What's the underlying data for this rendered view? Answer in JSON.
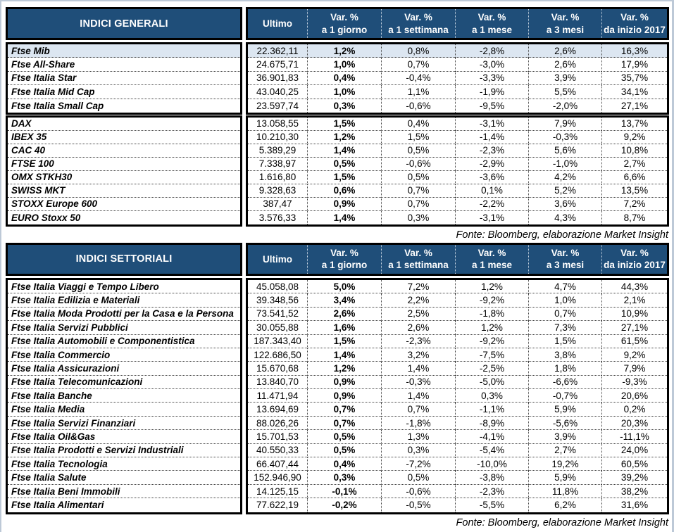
{
  "tables": [
    {
      "title": "INDICI GENERALI",
      "columns": {
        "ultimo": "Ultimo",
        "vars": [
          {
            "line1": "Var. %",
            "line2": "a 1 giorno"
          },
          {
            "line1": "Var. %",
            "line2": "a 1 settimana"
          },
          {
            "line1": "Var. %",
            "line2": "a 1 mese"
          },
          {
            "line1": "Var. %",
            "line2": "a 3 mesi"
          },
          {
            "line1": "Var. %",
            "line2": "da inizio 2017"
          }
        ]
      },
      "source": "Fonte: Bloomberg, elaborazione Market Insight",
      "groups": [
        {
          "rows": [
            {
              "name": "Ftse Mib",
              "ultimo": "22.362,11",
              "d1": "1,2%",
              "w1": "0,8%",
              "m1": "-2,8%",
              "m3": "2,6%",
              "ytd": "16,3%",
              "highlight": true
            },
            {
              "name": "Ftse All-Share",
              "ultimo": "24.675,71",
              "d1": "1,0%",
              "w1": "0,7%",
              "m1": "-3,0%",
              "m3": "2,6%",
              "ytd": "17,9%"
            },
            {
              "name": "Ftse Italia Star",
              "ultimo": "36.901,83",
              "d1": "0,4%",
              "w1": "-0,4%",
              "m1": "-3,3%",
              "m3": "3,9%",
              "ytd": "35,7%"
            },
            {
              "name": "Ftse Italia Mid Cap",
              "ultimo": "43.040,25",
              "d1": "1,0%",
              "w1": "1,1%",
              "m1": "-1,9%",
              "m3": "5,5%",
              "ytd": "34,1%"
            },
            {
              "name": "Ftse Italia Small Cap",
              "ultimo": "23.597,74",
              "d1": "0,3%",
              "w1": "-0,6%",
              "m1": "-9,5%",
              "m3": "-2,0%",
              "ytd": "27,1%"
            }
          ]
        },
        {
          "rows": [
            {
              "name": "DAX",
              "ultimo": "13.058,55",
              "d1": "1,5%",
              "w1": "0,4%",
              "m1": "-3,1%",
              "m3": "7,9%",
              "ytd": "13,7%"
            },
            {
              "name": "IBEX 35",
              "ultimo": "10.210,30",
              "d1": "1,2%",
              "w1": "1,5%",
              "m1": "-1,4%",
              "m3": "-0,3%",
              "ytd": "9,2%"
            },
            {
              "name": "CAC 40",
              "ultimo": "5.389,29",
              "d1": "1,4%",
              "w1": "0,5%",
              "m1": "-2,3%",
              "m3": "5,6%",
              "ytd": "10,8%"
            },
            {
              "name": "FTSE 100",
              "ultimo": "7.338,97",
              "d1": "0,5%",
              "w1": "-0,6%",
              "m1": "-2,9%",
              "m3": "-1,0%",
              "ytd": "2,7%"
            },
            {
              "name": "OMX STKH30",
              "ultimo": "1.616,80",
              "d1": "1,5%",
              "w1": "0,5%",
              "m1": "-3,6%",
              "m3": "4,2%",
              "ytd": "6,6%"
            },
            {
              "name": "SWISS MKT",
              "ultimo": "9.328,63",
              "d1": "0,6%",
              "w1": "0,7%",
              "m1": "0,1%",
              "m3": "5,2%",
              "ytd": "13,5%"
            },
            {
              "name": "STOXX Europe 600",
              "ultimo": "387,47",
              "d1": "0,9%",
              "w1": "0,7%",
              "m1": "-2,2%",
              "m3": "3,6%",
              "ytd": "7,2%"
            },
            {
              "name": "EURO Stoxx 50",
              "ultimo": "3.576,33",
              "d1": "1,4%",
              "w1": "0,3%",
              "m1": "-3,1%",
              "m3": "4,3%",
              "ytd": "8,7%"
            }
          ]
        }
      ]
    },
    {
      "title": "INDICI SETTORIALI",
      "columns": {
        "ultimo": "Ultimo",
        "vars": [
          {
            "line1": "Var. %",
            "line2": "a 1 giorno"
          },
          {
            "line1": "Var. %",
            "line2": "a 1 settimana"
          },
          {
            "line1": "Var. %",
            "line2": "a 1 mese"
          },
          {
            "line1": "Var. %",
            "line2": "a 3 mesi"
          },
          {
            "line1": "Var. %",
            "line2": "da inizio 2017"
          }
        ]
      },
      "source": "Fonte: Bloomberg, elaborazione Market Insight",
      "groups": [
        {
          "rows": [
            {
              "name": "Ftse Italia Viaggi e Tempo Libero",
              "ultimo": "45.058,08",
              "d1": "5,0%",
              "w1": "7,2%",
              "m1": "1,2%",
              "m3": "4,7%",
              "ytd": "44,3%"
            },
            {
              "name": "Ftse Italia Edilizia e Materiali",
              "ultimo": "39.348,56",
              "d1": "3,4%",
              "w1": "2,2%",
              "m1": "-9,2%",
              "m3": "1,0%",
              "ytd": "2,1%"
            },
            {
              "name": "Ftse Italia Moda Prodotti per la Casa e la Persona",
              "ultimo": "73.541,52",
              "d1": "2,6%",
              "w1": "2,5%",
              "m1": "-1,8%",
              "m3": "0,7%",
              "ytd": "10,9%"
            },
            {
              "name": "Ftse Italia Servizi Pubblici",
              "ultimo": "30.055,88",
              "d1": "1,6%",
              "w1": "2,6%",
              "m1": "1,2%",
              "m3": "7,3%",
              "ytd": "27,1%"
            },
            {
              "name": "Ftse Italia Automobili e Componentistica",
              "ultimo": "187.343,40",
              "d1": "1,5%",
              "w1": "-2,3%",
              "m1": "-9,2%",
              "m3": "1,5%",
              "ytd": "61,5%"
            },
            {
              "name": "Ftse Italia Commercio",
              "ultimo": "122.686,50",
              "d1": "1,4%",
              "w1": "3,2%",
              "m1": "-7,5%",
              "m3": "3,8%",
              "ytd": "9,2%"
            },
            {
              "name": "Ftse Italia Assicurazioni",
              "ultimo": "15.670,68",
              "d1": "1,2%",
              "w1": "1,4%",
              "m1": "-2,5%",
              "m3": "1,8%",
              "ytd": "7,9%"
            },
            {
              "name": "Ftse Italia Telecomunicazioni",
              "ultimo": "13.840,70",
              "d1": "0,9%",
              "w1": "-0,3%",
              "m1": "-5,0%",
              "m3": "-6,6%",
              "ytd": "-9,3%"
            },
            {
              "name": "Ftse Italia Banche",
              "ultimo": "11.471,94",
              "d1": "0,9%",
              "w1": "1,4%",
              "m1": "0,3%",
              "m3": "-0,7%",
              "ytd": "20,6%"
            },
            {
              "name": "Ftse Italia Media",
              "ultimo": "13.694,69",
              "d1": "0,7%",
              "w1": "0,7%",
              "m1": "-1,1%",
              "m3": "5,9%",
              "ytd": "0,2%"
            },
            {
              "name": "Ftse Italia Servizi Finanziari",
              "ultimo": "88.026,26",
              "d1": "0,7%",
              "w1": "-1,8%",
              "m1": "-8,9%",
              "m3": "-5,6%",
              "ytd": "20,3%"
            },
            {
              "name": "Ftse Italia Oil&Gas",
              "ultimo": "15.701,53",
              "d1": "0,5%",
              "w1": "1,3%",
              "m1": "-4,1%",
              "m3": "3,9%",
              "ytd": "-11,1%"
            },
            {
              "name": "Ftse Italia Prodotti e Servizi Industriali",
              "ultimo": "40.550,33",
              "d1": "0,5%",
              "w1": "0,3%",
              "m1": "-5,4%",
              "m3": "2,7%",
              "ytd": "24,0%"
            },
            {
              "name": "Ftse Italia Tecnologia",
              "ultimo": "66.407,44",
              "d1": "0,4%",
              "w1": "-7,2%",
              "m1": "-10,0%",
              "m3": "19,2%",
              "ytd": "60,5%"
            },
            {
              "name": "Ftse Italia Salute",
              "ultimo": "152.946,90",
              "d1": "0,3%",
              "w1": "0,5%",
              "m1": "-3,8%",
              "m3": "5,9%",
              "ytd": "39,2%"
            },
            {
              "name": "Ftse Italia Beni Immobili",
              "ultimo": "14.125,15",
              "d1": "-0,1%",
              "w1": "-0,6%",
              "m1": "-2,3%",
              "m3": "11,8%",
              "ytd": "38,2%"
            },
            {
              "name": "Ftse Italia Alimentari",
              "ultimo": "77.622,19",
              "d1": "-0,2%",
              "w1": "-0,5%",
              "m1": "-5,5%",
              "m3": "6,2%",
              "ytd": "31,6%"
            }
          ]
        }
      ]
    }
  ],
  "colors": {
    "header_blue": "#1F4E79",
    "highlight_row": "#DCE6F1",
    "frame": "#bdc9d7"
  }
}
